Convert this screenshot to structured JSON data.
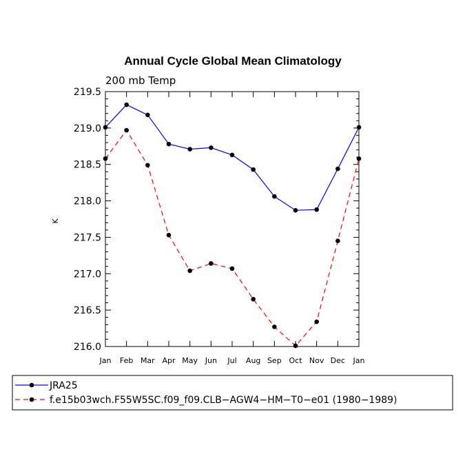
{
  "chart_data": {
    "type": "line",
    "title": "Annual Cycle Global Mean Climatology",
    "subtitle": "200 mb Temp",
    "xlabel": "",
    "ylabel": "K",
    "categories": [
      "Jan",
      "Feb",
      "Mar",
      "Apr",
      "May",
      "Jun",
      "Jul",
      "Aug",
      "Sep",
      "Oct",
      "Nov",
      "Dec",
      "Jan"
    ],
    "ylim": [
      216.0,
      219.5
    ],
    "yticks": [
      "216.0",
      "216.5",
      "217.0",
      "217.5",
      "218.0",
      "218.5",
      "219.0",
      "219.5"
    ],
    "series": [
      {
        "name": "JRA25",
        "color": "#0000ff",
        "dash": "solid",
        "values": [
          219.01,
          219.32,
          219.18,
          218.78,
          218.71,
          218.73,
          218.63,
          218.43,
          218.06,
          217.87,
          217.88,
          218.44,
          219.01
        ]
      },
      {
        "name": "f.e15b03wch.F55W5SC.f09_f09.CLB−AGW4−HM−T0−e01 (1980−1989)",
        "color": "#ff0000",
        "dash": "dashed",
        "values": [
          218.58,
          218.97,
          218.49,
          217.53,
          217.04,
          217.14,
          217.07,
          216.65,
          216.27,
          216.01,
          216.34,
          217.45,
          218.58
        ]
      }
    ],
    "legend": "bottom"
  }
}
